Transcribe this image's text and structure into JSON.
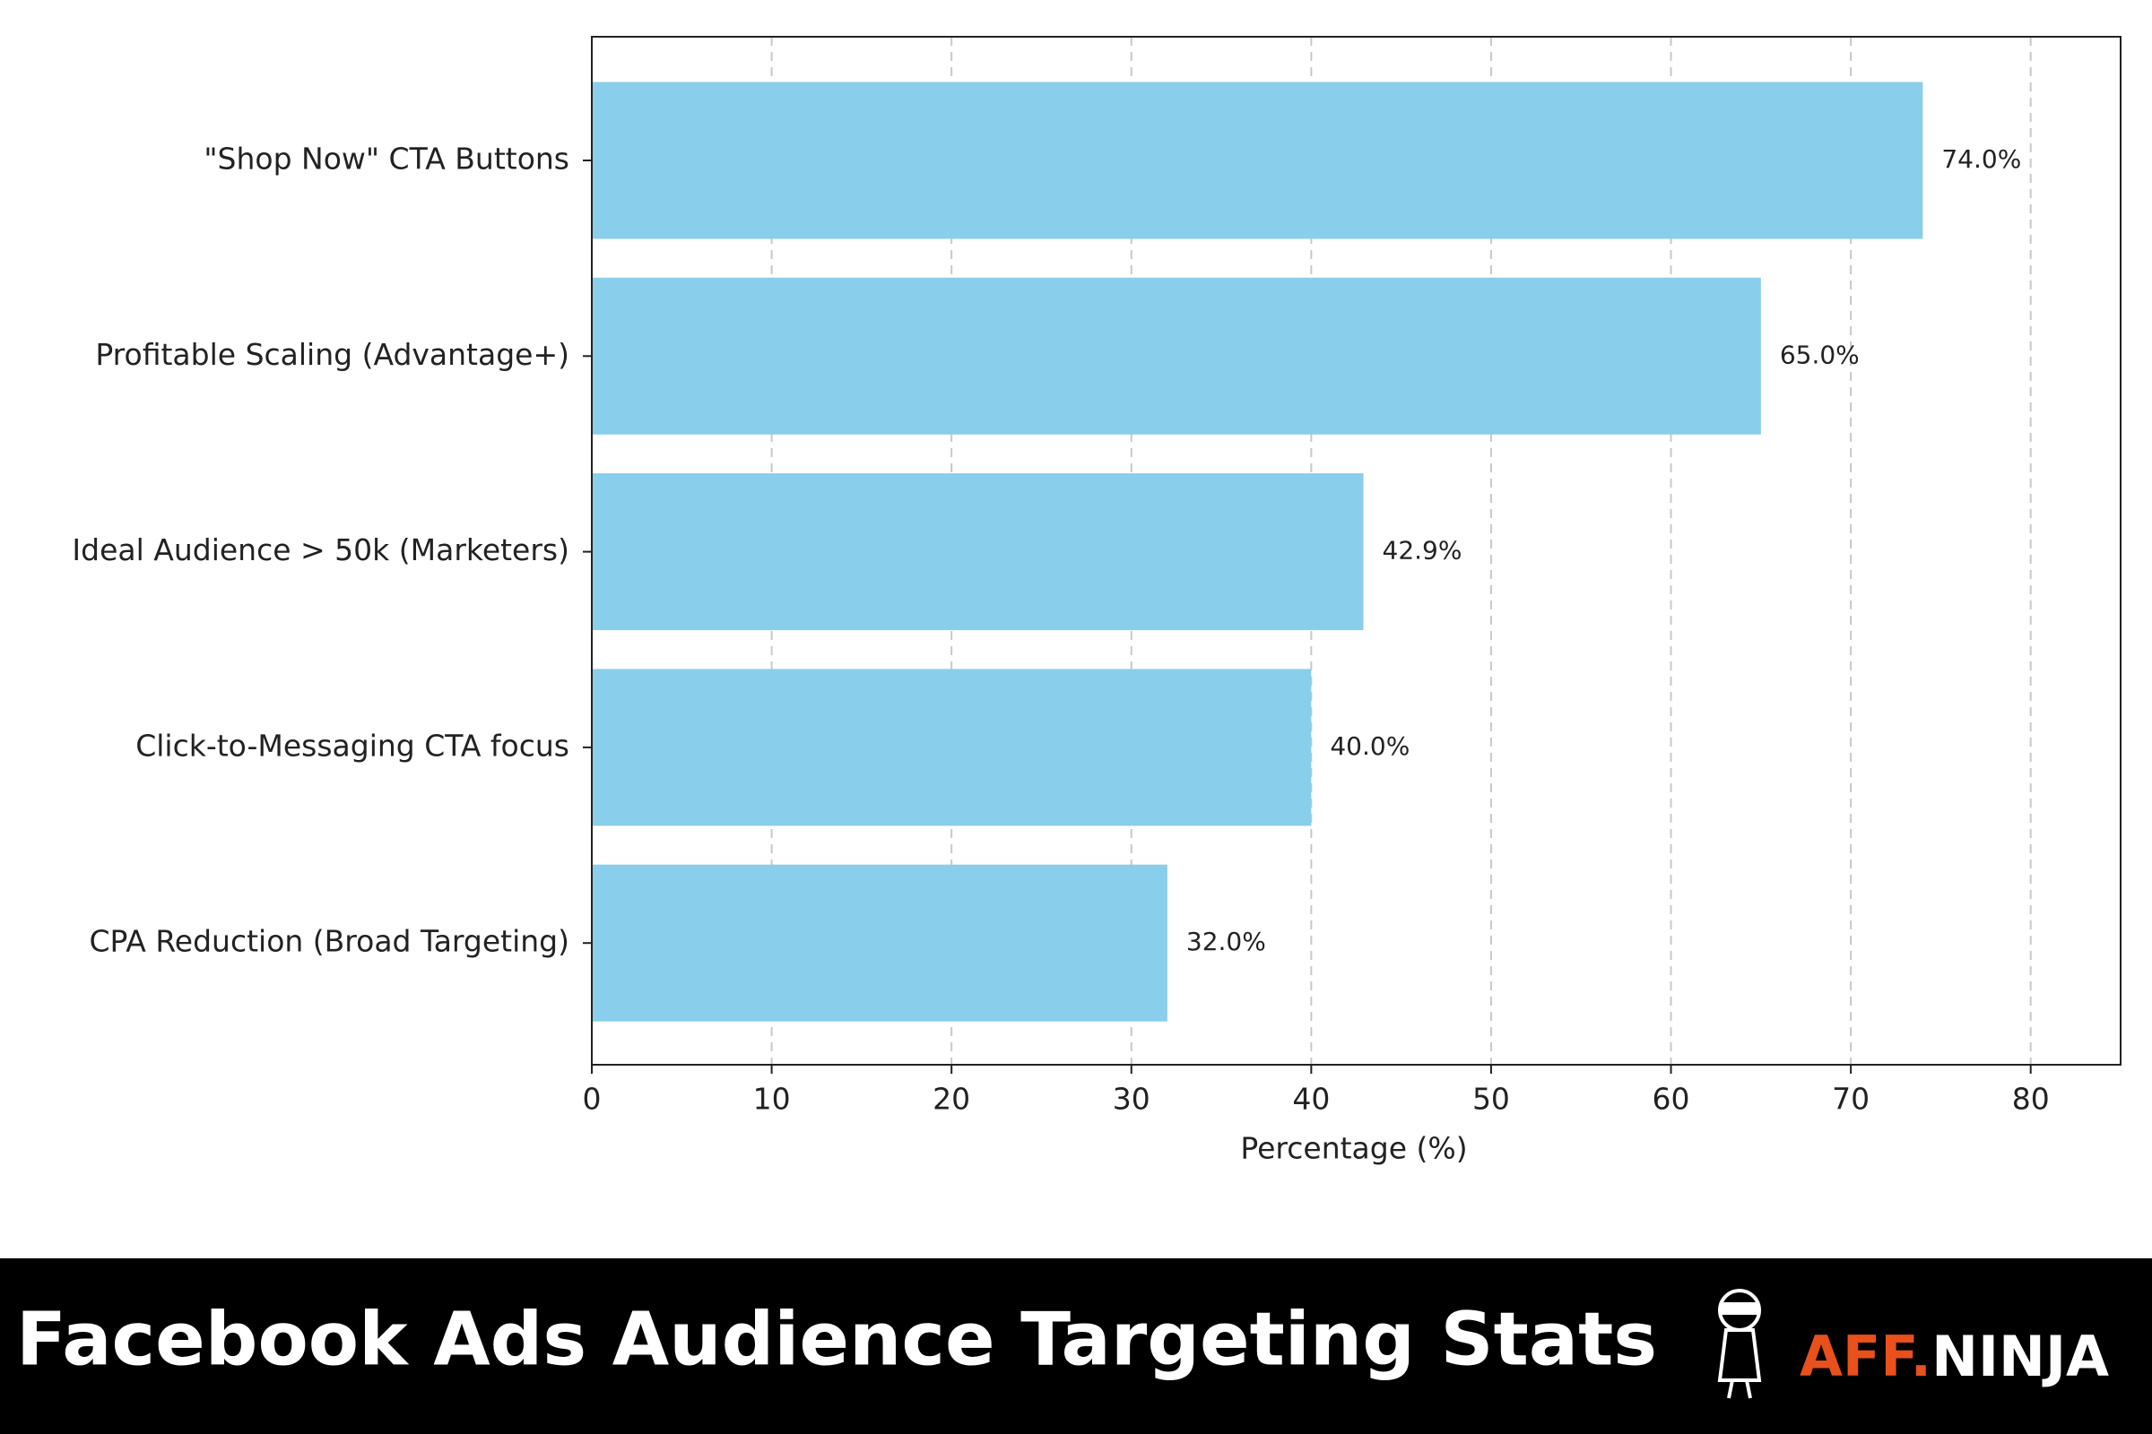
{
  "chart_data": {
    "type": "barh",
    "categories": [
      "\"Shop Now\" CTA Buttons",
      "Profitable Scaling (Advantage+)",
      "Ideal Audience > 50k (Marketers)",
      "Click-to-Messaging CTA focus",
      "CPA Reduction (Broad Targeting)"
    ],
    "values": [
      74,
      65,
      42.9,
      40,
      32
    ],
    "value_labels": [
      "74.0%",
      "65.0%",
      "42.9%",
      "40.0%",
      "32.0%"
    ],
    "color": "#89ceea",
    "xlabel": "Percentage (%)",
    "xlim": [
      0,
      85
    ],
    "xticks": [
      0,
      10,
      20,
      30,
      40,
      50,
      60,
      70,
      80
    ],
    "grid": true
  },
  "footer": {
    "title": "Facebook Ads Audience Targeting Stats",
    "brand_accent": "AFF.",
    "brand": "NINJA"
  }
}
